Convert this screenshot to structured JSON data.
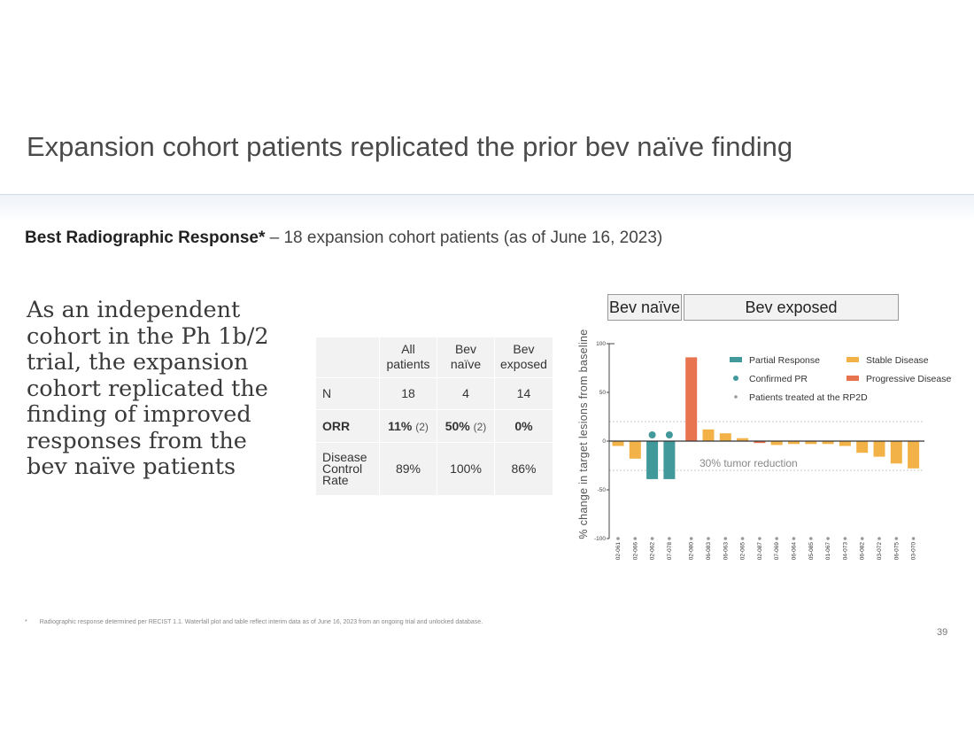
{
  "slide": {
    "title": "Expansion cohort patients replicated the prior bev naïve finding",
    "subtitle_bold": "Best Radiographic Response*",
    "subtitle_rest": " – 18 expansion cohort patients (as of June 16, 2023)",
    "callout": "As an independent cohort in the Ph 1b/2 trial, the expansion cohort replicated the finding of improved responses from the bev naïve patients",
    "footnote_marker": "*",
    "footnote": "Radiographic response determined per RECIST 1.1. Waterfall plot and table reflect interim data as of June 16, 2023 from an ongoing trial and unlocked database.",
    "page_number": "39"
  },
  "table": {
    "headers": [
      "All patients",
      "Bev naïve",
      "Bev exposed"
    ],
    "n_row": {
      "label": "N",
      "values": [
        "18",
        "4",
        "14"
      ]
    },
    "orr_row": {
      "label": "ORR",
      "cells": [
        {
          "pct": "11%",
          "count": "(2)"
        },
        {
          "pct": "50%",
          "count": "(2)"
        },
        {
          "pct": "0%",
          "count": ""
        }
      ]
    },
    "dcr_row": {
      "label": "Disease Control Rate",
      "values": [
        "89%",
        "100%",
        "86%"
      ]
    }
  },
  "chart_data": {
    "type": "bar",
    "subtype": "waterfall",
    "groups": [
      {
        "name": "Bev naïve",
        "patient_count": 4
      },
      {
        "name": "Bev exposed",
        "patient_count": 14
      }
    ],
    "categories": [
      "02-061",
      "02-066",
      "02-062",
      "07-078",
      "02-080",
      "06-083",
      "06-063",
      "02-065",
      "02-087",
      "07-069",
      "06-064",
      "05-085",
      "01-067",
      "04-073",
      "06-082",
      "03-072",
      "06-075",
      "03-070"
    ],
    "values": [
      -5,
      -18,
      -39,
      -39,
      86,
      12,
      8,
      3,
      -2,
      -4,
      -3,
      -3,
      -3,
      -5,
      -12,
      -16,
      -23,
      -28
    ],
    "responses": [
      "SD",
      "SD",
      "PR",
      "PR",
      "PD",
      "SD",
      "SD",
      "SD",
      "PD",
      "SD",
      "SD",
      "SD",
      "SD",
      "SD",
      "SD",
      "SD",
      "SD",
      "SD"
    ],
    "confirmed_pr": [
      false,
      false,
      true,
      true,
      false,
      false,
      false,
      false,
      false,
      false,
      false,
      false,
      false,
      false,
      false,
      false,
      false,
      false
    ],
    "rp2d": [
      true,
      true,
      true,
      true,
      true,
      true,
      true,
      true,
      true,
      true,
      true,
      true,
      true,
      true,
      true,
      true,
      true,
      true
    ],
    "ylabel": "% change in target lesions from baseline",
    "ylim": [
      -100,
      100
    ],
    "yticks": [
      100,
      50,
      0,
      -50,
      -100
    ],
    "reference_lines": [
      20,
      -30
    ],
    "annotation": "30% tumor reduction",
    "legend_position": "top-right",
    "legend": [
      {
        "label": "Partial Response",
        "key": "PR",
        "marker": "bar"
      },
      {
        "label": "Stable Disease",
        "key": "SD",
        "marker": "bar"
      },
      {
        "label": "Confirmed PR",
        "key": "CPR",
        "marker": "dot"
      },
      {
        "label": "Progressive Disease",
        "key": "PD",
        "marker": "bar"
      },
      {
        "label": "Patients treated at the RP2D",
        "key": "RP2D",
        "marker": "small-dot"
      }
    ],
    "colors": {
      "PR": "#41999b",
      "SD": "#f2b247",
      "PD": "#e8744f",
      "CPR": "#41999b",
      "RP2D": "#999999"
    }
  }
}
